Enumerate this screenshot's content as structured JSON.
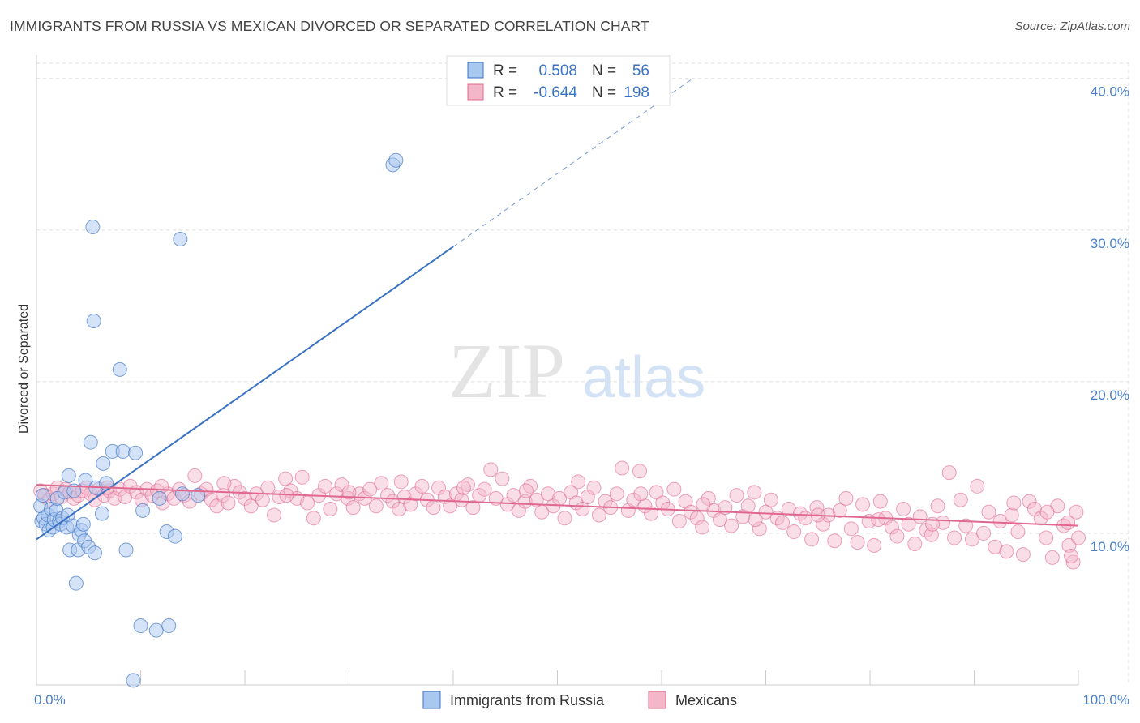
{
  "title": "IMMIGRANTS FROM RUSSIA VS MEXICAN DIVORCED OR SEPARATED CORRELATION CHART",
  "source": "Source: ZipAtlas.com",
  "watermark": {
    "zip": "ZIP",
    "atlas": "atlas"
  },
  "colors": {
    "blue": "#3a72c4",
    "blue_fill": "#a9c8f0",
    "pink": "#e0688f",
    "pink_fill": "#f4b6c9",
    "grid": "#dddddd",
    "tick_label": "#4a7fc9"
  },
  "chart_data": {
    "type": "scatter",
    "xlabel": "",
    "ylabel": "Divorced or Separated",
    "xlim": [
      0,
      100
    ],
    "ylim": [
      0,
      41
    ],
    "x_tick_labels": [
      "0.0%",
      "100.0%"
    ],
    "y_ticks": [
      10,
      20,
      30,
      40
    ],
    "y_tick_labels": [
      "10.0%",
      "20.0%",
      "30.0%",
      "40.0%"
    ],
    "grid": true,
    "legend": {
      "placement": "top-center",
      "entries": [
        {
          "r_label": "R =",
          "r_value": "0.508",
          "n_label": "N =",
          "n_value": "56"
        },
        {
          "r_label": "R =",
          "r_value": "-0.644",
          "n_label": "N =",
          "n_value": "198"
        }
      ]
    },
    "series": [
      {
        "name": "Immigrants from Russia",
        "color": "#3a72c4",
        "trend": {
          "x0": 0,
          "y0": 9.6,
          "x1": 40,
          "y1": 28.9,
          "dashed_to_x": 63,
          "dashed_to_y": 40
        },
        "points": [
          [
            0.4,
            11.8
          ],
          [
            0.5,
            10.8
          ],
          [
            0.6,
            12.5
          ],
          [
            0.7,
            11.0
          ],
          [
            0.9,
            10.6
          ],
          [
            1.1,
            11.2
          ],
          [
            1.2,
            10.2
          ],
          [
            1.4,
            11.6
          ],
          [
            1.6,
            10.4
          ],
          [
            1.7,
            10.9
          ],
          [
            1.9,
            11.5
          ],
          [
            2.0,
            12.3
          ],
          [
            2.2,
            10.8
          ],
          [
            2.3,
            10.6
          ],
          [
            2.5,
            11.0
          ],
          [
            2.7,
            12.7
          ],
          [
            2.9,
            10.4
          ],
          [
            3.0,
            11.2
          ],
          [
            3.1,
            13.8
          ],
          [
            3.2,
            8.9
          ],
          [
            3.5,
            10.5
          ],
          [
            3.6,
            12.8
          ],
          [
            3.8,
            6.7
          ],
          [
            4.0,
            8.9
          ],
          [
            4.1,
            9.9
          ],
          [
            4.3,
            10.2
          ],
          [
            4.5,
            10.6
          ],
          [
            4.6,
            9.5
          ],
          [
            4.7,
            13.5
          ],
          [
            5.0,
            9.1
          ],
          [
            5.2,
            16.0
          ],
          [
            5.4,
            30.2
          ],
          [
            5.5,
            24.0
          ],
          [
            5.6,
            8.7
          ],
          [
            5.7,
            13.0
          ],
          [
            6.3,
            11.3
          ],
          [
            6.4,
            14.6
          ],
          [
            6.7,
            13.3
          ],
          [
            7.3,
            15.4
          ],
          [
            8.0,
            20.8
          ],
          [
            8.3,
            15.4
          ],
          [
            8.6,
            8.9
          ],
          [
            9.3,
            0.3
          ],
          [
            9.5,
            15.3
          ],
          [
            10.0,
            3.9
          ],
          [
            10.2,
            11.5
          ],
          [
            11.5,
            3.6
          ],
          [
            11.8,
            12.3
          ],
          [
            12.5,
            10.1
          ],
          [
            12.7,
            3.9
          ],
          [
            13.3,
            9.8
          ],
          [
            13.8,
            29.4
          ],
          [
            14.0,
            12.6
          ],
          [
            15.5,
            12.5
          ],
          [
            34.2,
            34.3
          ],
          [
            34.5,
            34.6
          ]
        ]
      },
      {
        "name": "Mexicans",
        "color": "#e0688f",
        "trend": {
          "x0": 0,
          "y0": 13.2,
          "x1": 100,
          "y1": 10.5
        },
        "points": [
          [
            0.4,
            12.8
          ],
          [
            0.8,
            12.5
          ],
          [
            1.2,
            12.2
          ],
          [
            1.6,
            12.6
          ],
          [
            2.0,
            13.0
          ],
          [
            2.4,
            12.4
          ],
          [
            2.8,
            12.9
          ],
          [
            3.2,
            12.7
          ],
          [
            3.6,
            12.3
          ],
          [
            4.0,
            12.5
          ],
          [
            4.4,
            12.8
          ],
          [
            4.8,
            13.0
          ],
          [
            5.2,
            12.6
          ],
          [
            5.6,
            12.2
          ],
          [
            6.0,
            12.9
          ],
          [
            6.5,
            12.5
          ],
          [
            7.0,
            12.8
          ],
          [
            7.5,
            12.3
          ],
          [
            8.0,
            12.9
          ],
          [
            8.5,
            12.4
          ],
          [
            9.0,
            13.1
          ],
          [
            9.6,
            12.7
          ],
          [
            10.1,
            12.2
          ],
          [
            10.6,
            12.9
          ],
          [
            11.1,
            12.5
          ],
          [
            11.6,
            12.8
          ],
          [
            12.1,
            12.0
          ],
          [
            12.6,
            12.6
          ],
          [
            13.2,
            12.3
          ],
          [
            13.7,
            12.9
          ],
          [
            14.2,
            12.5
          ],
          [
            14.7,
            12.1
          ],
          [
            15.2,
            13.8
          ],
          [
            15.8,
            12.6
          ],
          [
            16.3,
            12.9
          ],
          [
            16.8,
            12.2
          ],
          [
            17.3,
            11.8
          ],
          [
            17.9,
            12.5
          ],
          [
            18.4,
            12.0
          ],
          [
            19.0,
            13.1
          ],
          [
            19.5,
            12.7
          ],
          [
            20.0,
            12.3
          ],
          [
            20.6,
            11.8
          ],
          [
            21.1,
            12.6
          ],
          [
            21.7,
            12.2
          ],
          [
            22.2,
            13.0
          ],
          [
            22.8,
            11.2
          ],
          [
            23.3,
            12.4
          ],
          [
            23.9,
            13.6
          ],
          [
            24.4,
            12.8
          ],
          [
            25.0,
            12.3
          ],
          [
            25.5,
            13.7
          ],
          [
            26.0,
            12.0
          ],
          [
            26.6,
            11.0
          ],
          [
            27.1,
            12.5
          ],
          [
            27.7,
            13.1
          ],
          [
            28.2,
            11.6
          ],
          [
            28.8,
            12.6
          ],
          [
            29.3,
            13.2
          ],
          [
            29.9,
            12.3
          ],
          [
            30.4,
            11.7
          ],
          [
            31.0,
            12.6
          ],
          [
            31.5,
            12.3
          ],
          [
            32.0,
            12.9
          ],
          [
            32.6,
            11.8
          ],
          [
            33.1,
            13.3
          ],
          [
            33.7,
            12.5
          ],
          [
            34.2,
            12.1
          ],
          [
            34.8,
            11.6
          ],
          [
            35.3,
            12.4
          ],
          [
            35.9,
            11.9
          ],
          [
            36.4,
            12.6
          ],
          [
            37.0,
            13.1
          ],
          [
            37.5,
            12.2
          ],
          [
            38.1,
            11.7
          ],
          [
            38.6,
            13.0
          ],
          [
            39.2,
            12.4
          ],
          [
            39.7,
            11.8
          ],
          [
            40.3,
            12.6
          ],
          [
            40.8,
            12.2
          ],
          [
            41.4,
            13.2
          ],
          [
            41.9,
            11.7
          ],
          [
            42.5,
            12.5
          ],
          [
            43.0,
            12.9
          ],
          [
            43.6,
            14.2
          ],
          [
            44.1,
            12.3
          ],
          [
            44.7,
            13.6
          ],
          [
            45.2,
            11.9
          ],
          [
            45.8,
            12.5
          ],
          [
            46.3,
            11.5
          ],
          [
            46.9,
            12.1
          ],
          [
            47.4,
            13.1
          ],
          [
            48.0,
            12.2
          ],
          [
            48.5,
            11.4
          ],
          [
            49.1,
            12.6
          ],
          [
            49.6,
            11.8
          ],
          [
            50.2,
            12.3
          ],
          [
            50.7,
            11.0
          ],
          [
            51.3,
            12.7
          ],
          [
            51.8,
            12.0
          ],
          [
            52.4,
            11.6
          ],
          [
            52.9,
            12.4
          ],
          [
            53.5,
            13.0
          ],
          [
            54.0,
            11.2
          ],
          [
            54.6,
            12.1
          ],
          [
            55.1,
            11.7
          ],
          [
            55.7,
            12.6
          ],
          [
            56.2,
            14.3
          ],
          [
            56.8,
            11.5
          ],
          [
            57.3,
            12.2
          ],
          [
            57.9,
            14.1
          ],
          [
            58.4,
            11.8
          ],
          [
            59.0,
            11.3
          ],
          [
            59.5,
            12.7
          ],
          [
            60.1,
            12.0
          ],
          [
            60.6,
            11.6
          ],
          [
            61.2,
            12.9
          ],
          [
            61.7,
            10.8
          ],
          [
            62.3,
            12.1
          ],
          [
            62.8,
            11.4
          ],
          [
            63.4,
            11.0
          ],
          [
            63.9,
            10.4
          ],
          [
            64.5,
            12.3
          ],
          [
            65.0,
            11.5
          ],
          [
            65.6,
            10.9
          ],
          [
            66.1,
            11.7
          ],
          [
            66.7,
            10.5
          ],
          [
            67.2,
            12.5
          ],
          [
            67.8,
            11.1
          ],
          [
            68.3,
            11.8
          ],
          [
            68.9,
            12.7
          ],
          [
            69.4,
            10.3
          ],
          [
            70.0,
            11.4
          ],
          [
            70.5,
            12.2
          ],
          [
            71.1,
            11.0
          ],
          [
            71.6,
            10.7
          ],
          [
            72.2,
            11.6
          ],
          [
            72.7,
            10.1
          ],
          [
            73.3,
            11.3
          ],
          [
            73.8,
            11.0
          ],
          [
            74.4,
            9.6
          ],
          [
            74.9,
            11.7
          ],
          [
            75.5,
            10.6
          ],
          [
            76.0,
            11.2
          ],
          [
            76.6,
            9.5
          ],
          [
            77.1,
            11.5
          ],
          [
            77.7,
            12.3
          ],
          [
            78.2,
            10.3
          ],
          [
            78.8,
            9.4
          ],
          [
            79.3,
            11.9
          ],
          [
            79.9,
            10.8
          ],
          [
            80.4,
            9.2
          ],
          [
            81.0,
            12.1
          ],
          [
            81.5,
            11.0
          ],
          [
            82.1,
            10.4
          ],
          [
            82.6,
            9.8
          ],
          [
            83.2,
            11.6
          ],
          [
            83.7,
            10.6
          ],
          [
            84.3,
            9.3
          ],
          [
            84.8,
            11.1
          ],
          [
            85.4,
            10.2
          ],
          [
            85.9,
            9.9
          ],
          [
            86.5,
            11.8
          ],
          [
            87.0,
            10.7
          ],
          [
            87.6,
            14.0
          ],
          [
            88.1,
            9.7
          ],
          [
            88.7,
            12.2
          ],
          [
            89.2,
            10.5
          ],
          [
            89.8,
            9.6
          ],
          [
            90.3,
            13.1
          ],
          [
            90.9,
            10.0
          ],
          [
            91.4,
            11.4
          ],
          [
            92.0,
            9.1
          ],
          [
            92.5,
            10.8
          ],
          [
            93.1,
            8.8
          ],
          [
            93.6,
            11.2
          ],
          [
            94.2,
            10.1
          ],
          [
            94.7,
            8.6
          ],
          [
            95.3,
            12.1
          ],
          [
            95.8,
            11.6
          ],
          [
            96.4,
            11.0
          ],
          [
            96.9,
            9.7
          ],
          [
            97.5,
            8.4
          ],
          [
            98.0,
            11.8
          ],
          [
            98.6,
            10.5
          ],
          [
            99.1,
            9.2
          ],
          [
            99.5,
            8.1
          ],
          [
            99.8,
            11.4
          ],
          [
            100.0,
            9.7
          ],
          [
            99.3,
            8.5
          ],
          [
            99.0,
            10.7
          ],
          [
            97.0,
            11.4
          ],
          [
            93.8,
            12.0
          ],
          [
            86.0,
            10.6
          ],
          [
            80.8,
            10.9
          ],
          [
            75.0,
            11.2
          ],
          [
            69.0,
            10.9
          ],
          [
            64.0,
            11.9
          ],
          [
            58.0,
            12.6
          ],
          [
            52.0,
            13.4
          ],
          [
            47.0,
            12.8
          ],
          [
            41.0,
            13.0
          ],
          [
            35.0,
            13.4
          ],
          [
            30.0,
            12.7
          ],
          [
            24.0,
            12.5
          ],
          [
            18.0,
            13.3
          ],
          [
            12.0,
            13.1
          ],
          [
            6.8,
            13.0
          ]
        ]
      }
    ]
  }
}
